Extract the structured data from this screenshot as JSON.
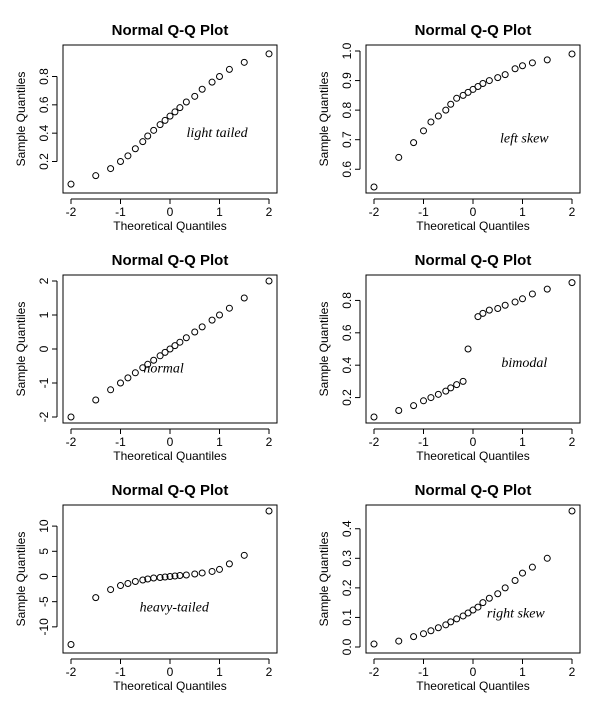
{
  "chart_data": [
    {
      "type": "scatter",
      "title": "Normal Q-Q Plot",
      "xlabel": "Theoretical Quantiles",
      "ylabel": "Sample Quantiles",
      "annotation": "light tailed",
      "xlim": [
        -2,
        2
      ],
      "ylim": [
        0.02,
        0.98
      ],
      "xticks": [
        -2,
        -1,
        0,
        1,
        2
      ],
      "yticks": [
        0.2,
        0.4,
        0.6,
        0.8
      ],
      "ytick_labels": [
        "0.2",
        "0.4",
        "0.6",
        "0.8"
      ],
      "grid": false,
      "points": [
        [
          -2.0,
          0.04
        ],
        [
          -1.5,
          0.1
        ],
        [
          -1.2,
          0.15
        ],
        [
          -1.0,
          0.2
        ],
        [
          -0.85,
          0.24
        ],
        [
          -0.7,
          0.29
        ],
        [
          -0.55,
          0.34
        ],
        [
          -0.45,
          0.38
        ],
        [
          -0.33,
          0.42
        ],
        [
          -0.2,
          0.46
        ],
        [
          -0.1,
          0.49
        ],
        [
          0.0,
          0.52
        ],
        [
          0.1,
          0.55
        ],
        [
          0.2,
          0.58
        ],
        [
          0.33,
          0.62
        ],
        [
          0.5,
          0.66
        ],
        [
          0.65,
          0.71
        ],
        [
          0.85,
          0.76
        ],
        [
          1.0,
          0.8
        ],
        [
          1.2,
          0.85
        ],
        [
          1.5,
          0.9
        ],
        [
          2.0,
          0.96
        ]
      ]
    },
    {
      "type": "scatter",
      "title": "Normal Q-Q Plot",
      "xlabel": "Theoretical Quantiles",
      "ylabel": "Sample Quantiles",
      "annotation": "left skew",
      "xlim": [
        -2,
        2
      ],
      "ylim": [
        0.54,
        1.0
      ],
      "xticks": [
        -2,
        -1,
        0,
        1,
        2
      ],
      "yticks": [
        0.6,
        0.7,
        0.8,
        0.9,
        1.0
      ],
      "ytick_labels": [
        "0.6",
        "0.7",
        "0.8",
        "0.9",
        "1.0"
      ],
      "grid": false,
      "points": [
        [
          -2.0,
          0.54
        ],
        [
          -1.5,
          0.64
        ],
        [
          -1.2,
          0.69
        ],
        [
          -1.0,
          0.73
        ],
        [
          -0.85,
          0.76
        ],
        [
          -0.7,
          0.78
        ],
        [
          -0.55,
          0.8
        ],
        [
          -0.45,
          0.82
        ],
        [
          -0.33,
          0.84
        ],
        [
          -0.2,
          0.85
        ],
        [
          -0.1,
          0.86
        ],
        [
          0.0,
          0.87
        ],
        [
          0.1,
          0.88
        ],
        [
          0.2,
          0.89
        ],
        [
          0.33,
          0.9
        ],
        [
          0.5,
          0.91
        ],
        [
          0.65,
          0.92
        ],
        [
          0.85,
          0.94
        ],
        [
          1.0,
          0.95
        ],
        [
          1.2,
          0.96
        ],
        [
          1.5,
          0.97
        ],
        [
          2.0,
          0.99
        ]
      ]
    },
    {
      "type": "scatter",
      "title": "Normal Q-Q Plot",
      "xlabel": "Theoretical Quantiles",
      "ylabel": "Sample Quantiles",
      "annotation": "normal",
      "xlim": [
        -2,
        2
      ],
      "ylim": [
        -2.0,
        2.0
      ],
      "xticks": [
        -2,
        -1,
        0,
        1,
        2
      ],
      "yticks": [
        -2,
        -1,
        0,
        1,
        2
      ],
      "ytick_labels": [
        "-2",
        "-1",
        "0",
        "1",
        "2"
      ],
      "grid": false,
      "points": [
        [
          -2.0,
          -2.0
        ],
        [
          -1.5,
          -1.5
        ],
        [
          -1.2,
          -1.2
        ],
        [
          -1.0,
          -1.0
        ],
        [
          -0.85,
          -0.85
        ],
        [
          -0.7,
          -0.7
        ],
        [
          -0.55,
          -0.55
        ],
        [
          -0.45,
          -0.45
        ],
        [
          -0.33,
          -0.33
        ],
        [
          -0.2,
          -0.2
        ],
        [
          -0.1,
          -0.1
        ],
        [
          0.0,
          0.0
        ],
        [
          0.1,
          0.1
        ],
        [
          0.2,
          0.2
        ],
        [
          0.33,
          0.33
        ],
        [
          0.5,
          0.5
        ],
        [
          0.65,
          0.65
        ],
        [
          0.85,
          0.85
        ],
        [
          1.0,
          1.0
        ],
        [
          1.2,
          1.2
        ],
        [
          1.5,
          1.5
        ],
        [
          2.0,
          2.0
        ]
      ]
    },
    {
      "type": "scatter",
      "title": "Normal Q-Q Plot",
      "xlabel": "Theoretical Quantiles",
      "ylabel": "Sample Quantiles",
      "annotation": "bimodal",
      "xlim": [
        -2,
        2
      ],
      "ylim": [
        0.08,
        0.92
      ],
      "xticks": [
        -2,
        -1,
        0,
        1,
        2
      ],
      "yticks": [
        0.2,
        0.4,
        0.6,
        0.8
      ],
      "ytick_labels": [
        "0.2",
        "0.4",
        "0.6",
        "0.8"
      ],
      "grid": false,
      "points": [
        [
          -2.0,
          0.08
        ],
        [
          -1.5,
          0.12
        ],
        [
          -1.2,
          0.15
        ],
        [
          -1.0,
          0.18
        ],
        [
          -0.85,
          0.2
        ],
        [
          -0.7,
          0.22
        ],
        [
          -0.55,
          0.24
        ],
        [
          -0.45,
          0.26
        ],
        [
          -0.33,
          0.28
        ],
        [
          -0.2,
          0.3
        ],
        [
          -0.1,
          0.5
        ],
        [
          0.1,
          0.7
        ],
        [
          0.2,
          0.72
        ],
        [
          0.33,
          0.74
        ],
        [
          0.5,
          0.75
        ],
        [
          0.65,
          0.77
        ],
        [
          0.85,
          0.79
        ],
        [
          1.0,
          0.81
        ],
        [
          1.2,
          0.84
        ],
        [
          1.5,
          0.87
        ],
        [
          2.0,
          0.91
        ]
      ]
    },
    {
      "type": "scatter",
      "title": "Normal Q-Q Plot",
      "xlabel": "Theoretical Quantiles",
      "ylabel": "Sample Quantiles",
      "annotation": "heavy-tailed",
      "xlim": [
        -2,
        2
      ],
      "ylim": [
        -14,
        13
      ],
      "xticks": [
        -2,
        -1,
        0,
        1,
        2
      ],
      "yticks": [
        -10,
        -5,
        0,
        5,
        10
      ],
      "ytick_labels": [
        "-10",
        "-5",
        "0",
        "5",
        "10"
      ],
      "grid": false,
      "points": [
        [
          -2.0,
          -13.5
        ],
        [
          -1.5,
          -4.2
        ],
        [
          -1.2,
          -2.6
        ],
        [
          -1.0,
          -1.8
        ],
        [
          -0.85,
          -1.4
        ],
        [
          -0.7,
          -1.0
        ],
        [
          -0.55,
          -0.7
        ],
        [
          -0.45,
          -0.5
        ],
        [
          -0.33,
          -0.3
        ],
        [
          -0.2,
          -0.2
        ],
        [
          -0.1,
          -0.1
        ],
        [
          0.0,
          0.0
        ],
        [
          0.1,
          0.1
        ],
        [
          0.2,
          0.2
        ],
        [
          0.33,
          0.3
        ],
        [
          0.5,
          0.5
        ],
        [
          0.65,
          0.7
        ],
        [
          0.85,
          1.0
        ],
        [
          1.0,
          1.4
        ],
        [
          1.2,
          2.5
        ],
        [
          1.5,
          4.2
        ],
        [
          2.0,
          13.0
        ]
      ]
    },
    {
      "type": "scatter",
      "title": "Normal Q-Q Plot",
      "xlabel": "Theoretical Quantiles",
      "ylabel": "Sample Quantiles",
      "annotation": "right skew",
      "xlim": [
        -2,
        2
      ],
      "ylim": [
        0.0,
        0.46
      ],
      "xticks": [
        -2,
        -1,
        0,
        1,
        2
      ],
      "yticks": [
        0.0,
        0.1,
        0.2,
        0.3,
        0.4
      ],
      "ytick_labels": [
        "0.0",
        "0.1",
        "0.2",
        "0.3",
        "0.4"
      ],
      "grid": false,
      "points": [
        [
          -2.0,
          0.01
        ],
        [
          -1.5,
          0.02
        ],
        [
          -1.2,
          0.035
        ],
        [
          -1.0,
          0.045
        ],
        [
          -0.85,
          0.055
        ],
        [
          -0.7,
          0.065
        ],
        [
          -0.55,
          0.075
        ],
        [
          -0.45,
          0.085
        ],
        [
          -0.33,
          0.095
        ],
        [
          -0.2,
          0.105
        ],
        [
          -0.1,
          0.115
        ],
        [
          0.0,
          0.125
        ],
        [
          0.1,
          0.135
        ],
        [
          0.2,
          0.15
        ],
        [
          0.33,
          0.165
        ],
        [
          0.5,
          0.18
        ],
        [
          0.65,
          0.2
        ],
        [
          0.85,
          0.225
        ],
        [
          1.0,
          0.25
        ],
        [
          1.2,
          0.27
        ],
        [
          1.5,
          0.3
        ],
        [
          2.0,
          0.46
        ]
      ]
    }
  ]
}
